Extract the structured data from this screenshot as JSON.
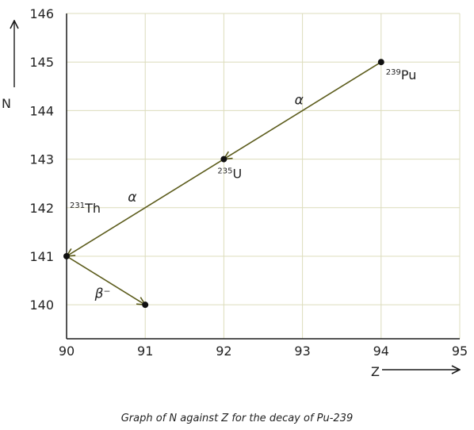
{
  "caption": "Graph of N against Z for the decay of Pu-239",
  "chart_data": {
    "type": "scatter",
    "title": "",
    "xlabel": "Z",
    "ylabel": "N",
    "xlim": [
      90,
      95
    ],
    "ylim": [
      139.3,
      146
    ],
    "x_ticks": [
      "90",
      "91",
      "92",
      "93",
      "94",
      "95"
    ],
    "y_ticks": [
      "140",
      "141",
      "142",
      "143",
      "144",
      "145",
      "146"
    ],
    "grid": true,
    "points": [
      {
        "x": 94,
        "y": 145,
        "sup": "239",
        "label": "Pu"
      },
      {
        "x": 92,
        "y": 143,
        "sup": "235",
        "label": "U"
      },
      {
        "x": 90,
        "y": 141,
        "sup": "231",
        "label": "Th"
      },
      {
        "x": 91,
        "y": 140,
        "sup": "",
        "label": ""
      }
    ],
    "transitions": [
      {
        "from": [
          94,
          145
        ],
        "to": [
          92,
          143
        ],
        "label": "α"
      },
      {
        "from": [
          92,
          143
        ],
        "to": [
          90,
          141
        ],
        "label": "α"
      },
      {
        "from": [
          90,
          141
        ],
        "to": [
          91,
          140
        ],
        "label": "β⁻"
      }
    ],
    "colors": {
      "line": "#5c5c1c",
      "grid": "#dcdcbc",
      "axis": "#1a1a1a",
      "point": "#111111"
    }
  }
}
